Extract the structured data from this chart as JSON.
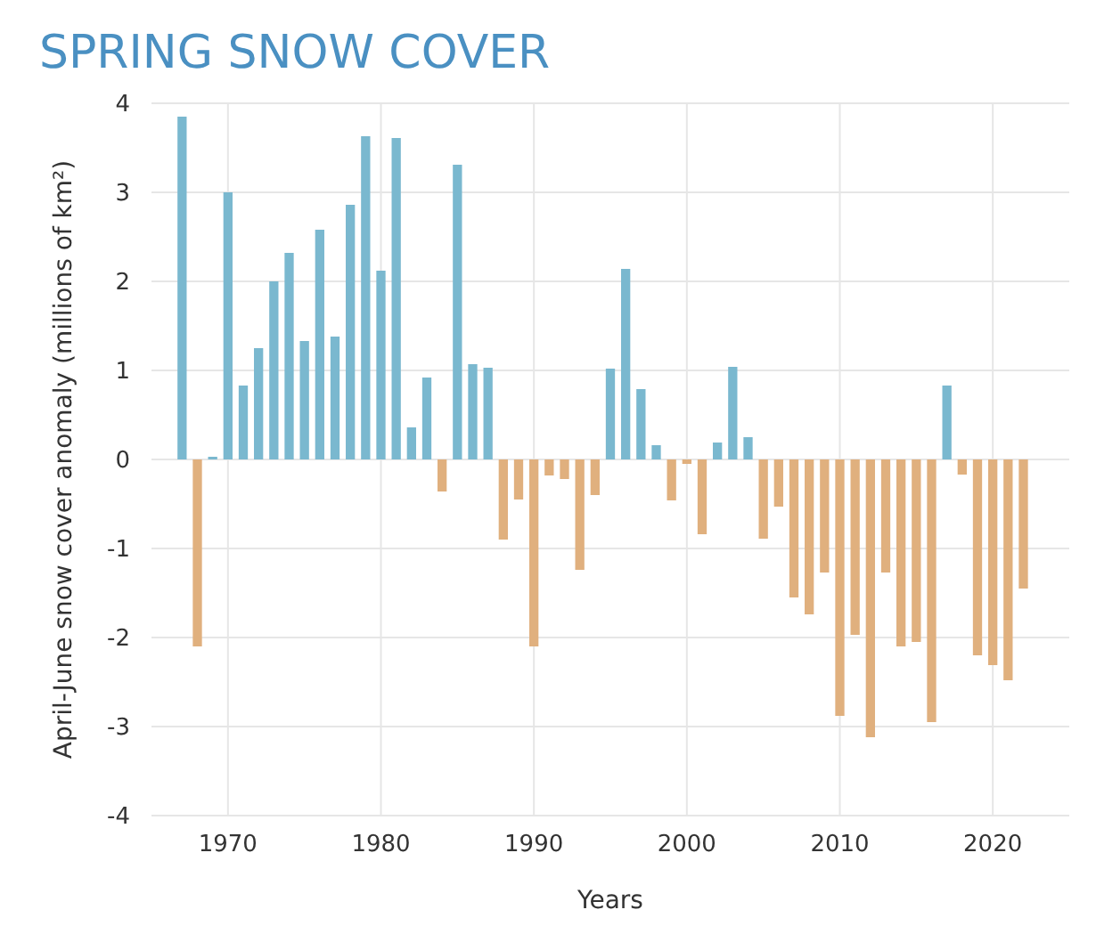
{
  "chart_data": {
    "type": "bar",
    "title": "SPRING SNOW COVER",
    "xlabel": "Years",
    "ylabel": "April-June snow cover anomaly (millions of km²)",
    "x": [
      1967,
      1968,
      1969,
      1970,
      1971,
      1972,
      1973,
      1974,
      1975,
      1976,
      1977,
      1978,
      1979,
      1980,
      1981,
      1982,
      1983,
      1984,
      1985,
      1986,
      1987,
      1988,
      1989,
      1990,
      1991,
      1992,
      1993,
      1994,
      1995,
      1996,
      1997,
      1998,
      1999,
      2000,
      2001,
      2002,
      2003,
      2004,
      2005,
      2006,
      2007,
      2008,
      2009,
      2010,
      2011,
      2012,
      2013,
      2014,
      2015,
      2016,
      2017,
      2018,
      2019,
      2020,
      2021,
      2022
    ],
    "values": [
      3.85,
      -2.1,
      0.03,
      3.0,
      0.83,
      1.25,
      2.0,
      2.32,
      1.33,
      2.58,
      1.38,
      2.86,
      3.63,
      2.12,
      3.61,
      0.36,
      0.92,
      -0.36,
      3.31,
      1.07,
      1.03,
      -0.9,
      -0.45,
      -2.1,
      -0.18,
      -0.22,
      -1.24,
      -0.4,
      1.02,
      2.14,
      0.79,
      0.16,
      -0.46,
      -0.05,
      -0.84,
      0.19,
      1.04,
      0.25,
      -0.89,
      -0.53,
      -1.55,
      -1.74,
      -1.27,
      -2.88,
      -1.97,
      -3.12,
      -1.27,
      -2.1,
      -2.05,
      -2.95,
      0.83,
      -0.17,
      -2.2,
      -2.31,
      -2.48,
      -1.45
    ],
    "colors": [
      "#7ab8cf",
      "#e0b07e",
      "#7ab8cf",
      "#7ab8cf",
      "#7ab8cf",
      "#7ab8cf",
      "#7ab8cf",
      "#7ab8cf",
      "#7ab8cf",
      "#7ab8cf",
      "#7ab8cf",
      "#7ab8cf",
      "#7ab8cf",
      "#7ab8cf",
      "#7ab8cf",
      "#7ab8cf",
      "#7ab8cf",
      "#e0b07e",
      "#7ab8cf",
      "#7ab8cf",
      "#7ab8cf",
      "#e0b07e",
      "#e0b07e",
      "#e0b07e",
      "#e0b07e",
      "#e0b07e",
      "#e0b07e",
      "#e0b07e",
      "#7ab8cf",
      "#7ab8cf",
      "#7ab8cf",
      "#7ab8cf",
      "#e0b07e",
      "#e0b07e",
      "#e0b07e",
      "#7ab8cf",
      "#7ab8cf",
      "#7ab8cf",
      "#e0b07e",
      "#e0b07e",
      "#e0b07e",
      "#e0b07e",
      "#e0b07e",
      "#e0b07e",
      "#e0b07e",
      "#e0b07e",
      "#e0b07e",
      "#e0b07e",
      "#e0b07e",
      "#e0b07e",
      "#7ab8cf",
      "#e0b07e",
      "#e0b07e",
      "#e0b07e",
      "#e0b07e",
      "#e0b07e"
    ],
    "xlim": [
      1965,
      2025
    ],
    "xticks": [
      1970,
      1980,
      1990,
      2000,
      2010,
      2020
    ],
    "ylim": [
      -4,
      4
    ],
    "yticks": [
      -4,
      -3,
      -2,
      -1,
      0,
      1,
      2,
      3,
      4
    ],
    "grid": true
  }
}
